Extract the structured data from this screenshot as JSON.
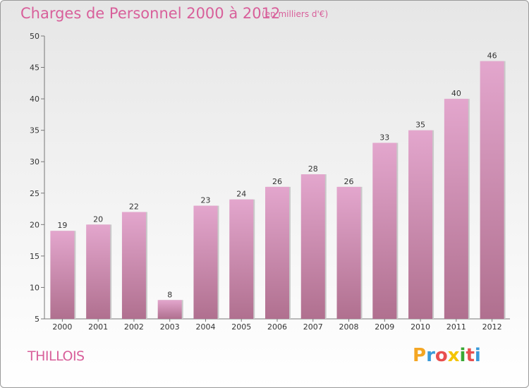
{
  "header": {
    "title": "Charges de Personnel 2000 à 2012",
    "unit": "(en milliers d'€)"
  },
  "footer": {
    "commune": "THILLOIS",
    "logo_letters": [
      "P",
      "r",
      "o",
      "x",
      "i",
      "t",
      "i"
    ],
    "logo_colors": [
      "#f4a623",
      "#3a9ad9",
      "#e84f4f",
      "#f4c400",
      "#39a935",
      "#e84f4f",
      "#3a9ad9"
    ]
  },
  "chart_data": {
    "type": "bar",
    "categories": [
      "2000",
      "2001",
      "2002",
      "2003",
      "2004",
      "2005",
      "2006",
      "2007",
      "2008",
      "2009",
      "2010",
      "2011",
      "2012"
    ],
    "values": [
      19,
      20,
      22,
      8,
      23,
      24,
      26,
      28,
      26,
      33,
      35,
      40,
      46
    ],
    "title": "Charges de Personnel 2000 à 2012",
    "subtitle": "(en milliers d'€)",
    "xlabel": "",
    "ylabel": "",
    "ylim": [
      5,
      50
    ],
    "yticks": [
      5,
      10,
      15,
      20,
      25,
      30,
      35,
      40,
      45,
      50
    ],
    "grid": false,
    "bar_color_top": "#e3a6cd",
    "bar_color_bottom": "#b0708f"
  }
}
